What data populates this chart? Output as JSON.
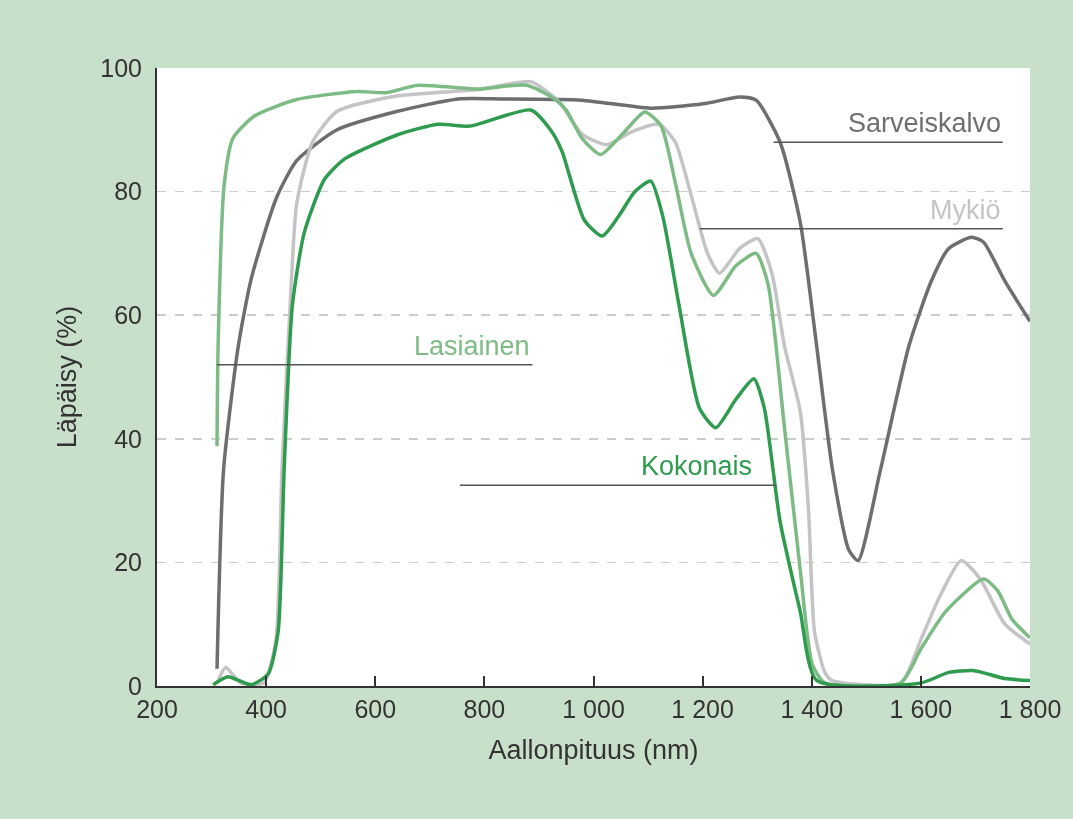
{
  "chart_data": {
    "type": "line",
    "xlabel": "Aallonpituus (nm)",
    "ylabel": "Läpäisy (%)",
    "xlim": [
      200,
      1800
    ],
    "xticks": [
      200,
      400,
      600,
      800,
      {
        "value": 1000,
        "label": "1 000"
      },
      {
        "value": 1200,
        "label": "1 200"
      },
      {
        "value": 1400,
        "label": "1 400"
      },
      {
        "value": 1600,
        "label": "1 600"
      },
      {
        "value": 1800,
        "label": "1 800"
      }
    ],
    "ylim": [
      0,
      100
    ],
    "yticks": [
      0,
      20,
      40,
      60,
      80,
      100
    ],
    "grid": "y",
    "legend": false,
    "marker": "none",
    "line_style": "solid",
    "series": [
      {
        "name": "Sarveiskalvo",
        "color": "#6d6e70",
        "x": [
          310,
          322,
          349,
          373,
          419,
          456,
          530,
          641,
          752,
          831,
          979,
          1105,
          1201,
          1268,
          1298,
          1342,
          1379,
          1409,
          1438,
          1468,
          1485,
          1526,
          1578,
          1619,
          1651,
          1693,
          1715,
          1754,
          1800
        ],
        "values": [
          2.8,
          35,
          55,
          66,
          79,
          85,
          90,
          93,
          95,
          95,
          94.8,
          93.5,
          94.2,
          95.3,
          94.8,
          88,
          75,
          55,
          35,
          22,
          20.3,
          35,
          55,
          65.5,
          70.8,
          72.6,
          71.8,
          65.5,
          59
        ]
      },
      {
        "name": "Mykiö",
        "color": "#c4c4c6",
        "x": [
          310,
          326,
          353,
          396,
          418,
          429,
          444,
          456,
          485,
          530,
          641,
          789,
          885,
          929,
          942,
          979,
          1024,
          1068,
          1120,
          1150,
          1179,
          1209,
          1231,
          1268,
          1301,
          1327,
          1350,
          1379,
          1394,
          1405,
          1424,
          1437,
          1563,
          1600,
          1632,
          1674,
          1709,
          1754,
          1800
        ],
        "values": [
          0.5,
          3,
          0.5,
          0.5,
          7.5,
          35,
          61.5,
          78,
          88,
          93,
          95.5,
          96.5,
          97.8,
          95.2,
          93.9,
          89.3,
          87.6,
          89.6,
          90.9,
          88,
          79.4,
          70,
          66.8,
          70.8,
          72.4,
          66.8,
          55,
          44.4,
          28.6,
          8.8,
          2.2,
          0.9,
          0.5,
          7.5,
          14,
          20.3,
          17.3,
          10,
          6.8
        ]
      },
      {
        "name": "Lasiainen",
        "color": "#7dbb84",
        "x": [
          310,
          312,
          323,
          339,
          378,
          456,
          567,
          619,
          678,
          789,
          878,
          930,
          950,
          979,
          1013,
          1053,
          1094,
          1124,
          1150,
          1179,
          1220,
          1261,
          1298,
          1320,
          1350,
          1379,
          1401,
          1424,
          1563,
          1600,
          1645,
          1715,
          1741,
          1767,
          1800
        ],
        "values": [
          38.8,
          55,
          81,
          88.6,
          92.2,
          94.9,
          96.2,
          96,
          97.2,
          96.6,
          97.2,
          94.9,
          93.2,
          88.6,
          86,
          89.3,
          92.9,
          90.6,
          81.4,
          70,
          63.2,
          68,
          70,
          65,
          41.8,
          18.7,
          3.5,
          0.5,
          0.5,
          6,
          12,
          17.3,
          15.4,
          10.8,
          7.8
        ]
      },
      {
        "name": "Kokonais",
        "color": "#2e9b4f",
        "x": [
          303,
          330,
          373,
          404,
          422,
          433,
          448,
          470,
          507,
          544,
          641,
          715,
          774,
          885,
          922,
          942,
          983,
          1016,
          1046,
          1076,
          1105,
          1127,
          1157,
          1194,
          1224,
          1261,
          1294,
          1313,
          1342,
          1379,
          1409,
          1600,
          1651,
          1696,
          1754,
          1800
        ],
        "values": [
          0.2,
          1.5,
          0.2,
          2,
          8.8,
          35,
          61.5,
          73.4,
          82,
          85.3,
          89.2,
          90.9,
          90.6,
          93.2,
          89.9,
          86.6,
          75.4,
          72.8,
          76,
          80,
          81.7,
          76,
          61.5,
          45,
          41.8,
          46.4,
          49.7,
          45,
          26.6,
          12,
          0.9,
          0.5,
          2.2,
          2.5,
          1.2,
          0.9
        ]
      }
    ]
  }
}
